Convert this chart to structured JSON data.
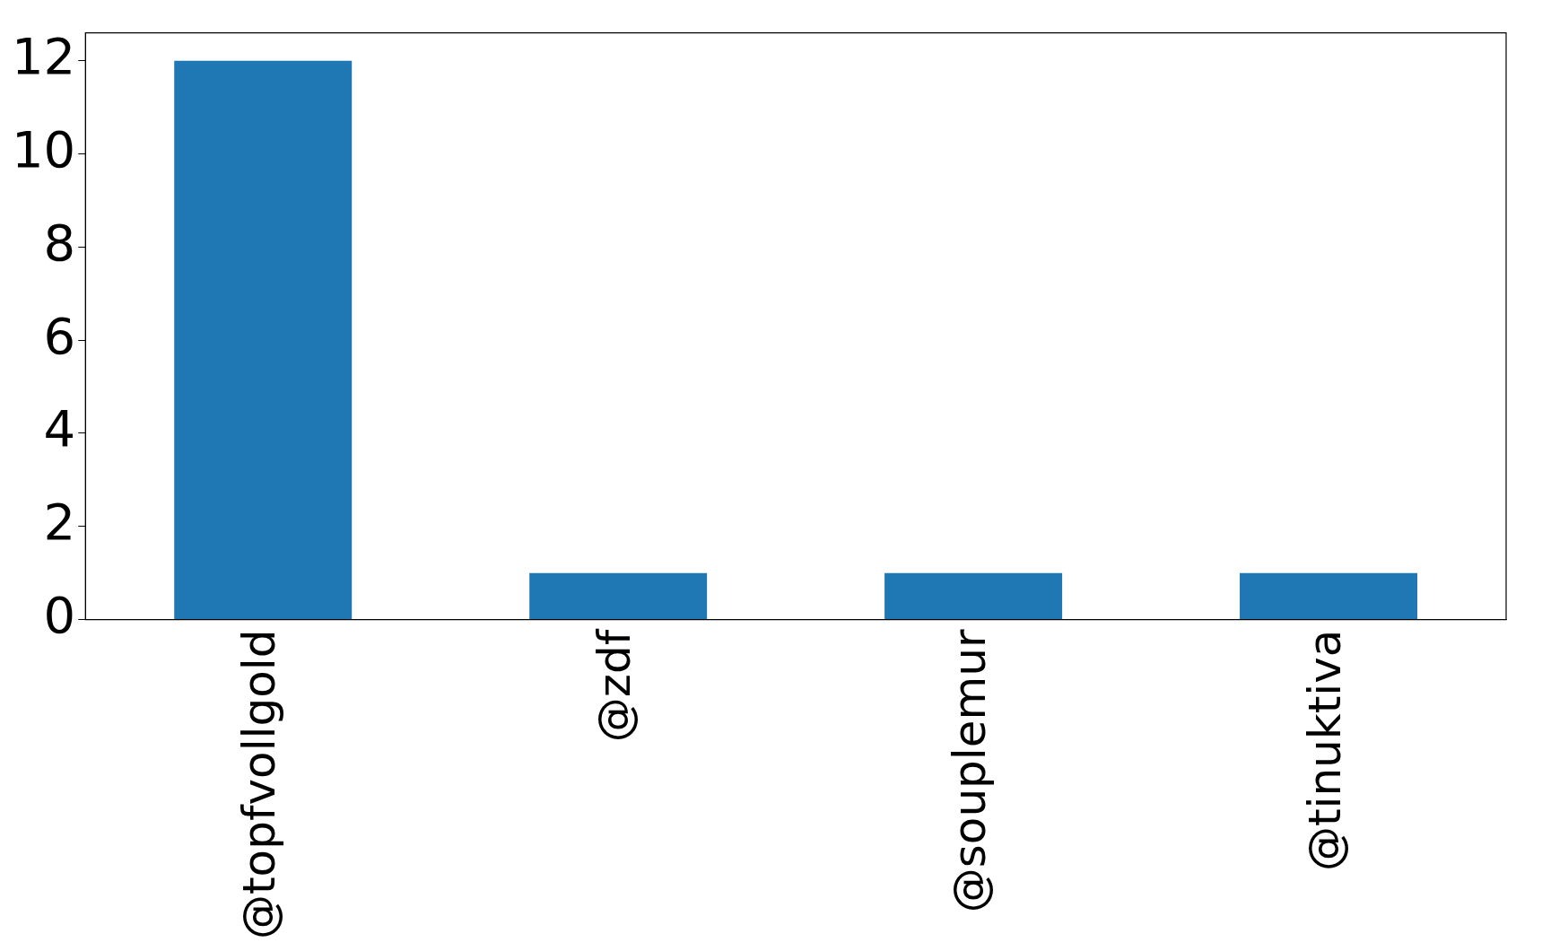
{
  "chart_data": {
    "type": "bar",
    "categories": [
      "@topfvollgold",
      "@zdf",
      "@souplemur",
      "@tinuktiva"
    ],
    "values": [
      12,
      1,
      1,
      1
    ],
    "color": "#1f77b4",
    "ylim": [
      0,
      12.6
    ],
    "yticks": [
      0,
      2,
      4,
      6,
      8,
      10,
      12
    ],
    "grid": false,
    "legend": false
  }
}
